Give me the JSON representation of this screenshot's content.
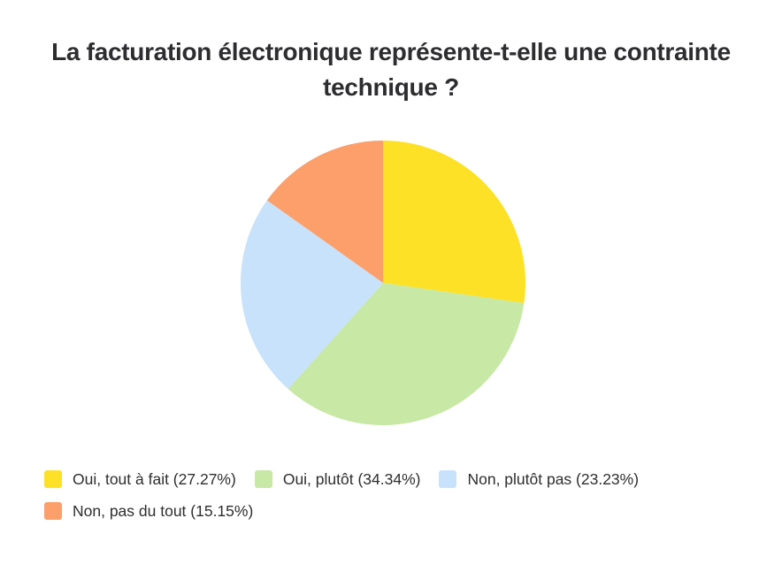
{
  "page": {
    "background_color": "#ffffff"
  },
  "chart_data": {
    "type": "pie",
    "title": "La facturation électronique représente-t-elle une contrainte technique ?",
    "title_color": "#2d2d30",
    "start_angle_deg": 0,
    "direction": "clockwise",
    "legend_position": "bottom",
    "slices": [
      {
        "label": "Oui, tout à fait",
        "value_pct": 27.27,
        "color": "#FDE126",
        "legend_label": "Oui, tout à fait (27.27%)"
      },
      {
        "label": "Oui, plutôt",
        "value_pct": 34.34,
        "color": "#C8E8A6",
        "legend_label": "Oui, plutôt (34.34%)"
      },
      {
        "label": "Non, plutôt pas",
        "value_pct": 23.23,
        "color": "#C7E2FA",
        "legend_label": "Non, plutôt pas (23.23%)"
      },
      {
        "label": "Non, pas du tout",
        "value_pct": 15.15,
        "color": "#FC9F6B",
        "legend_label": "Non, pas du tout (15.15%)"
      }
    ]
  }
}
